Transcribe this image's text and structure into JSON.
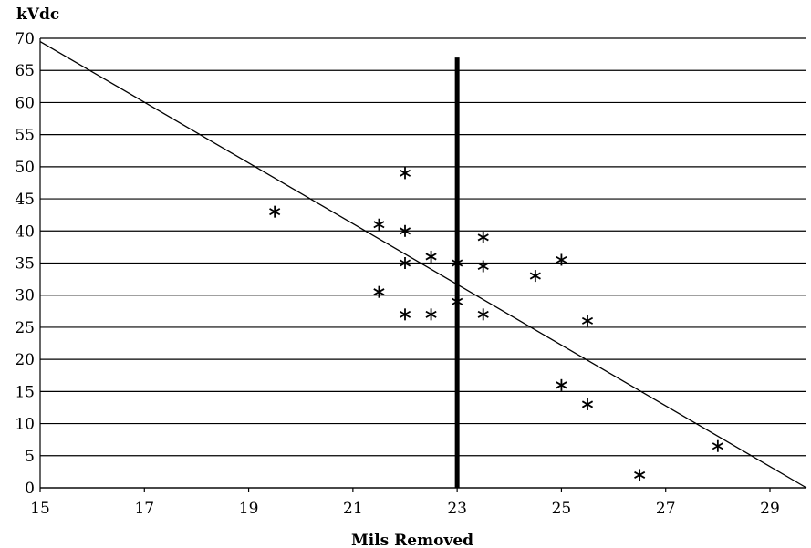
{
  "chart_data": {
    "type": "scatter",
    "title": "",
    "xlabel": "Mils Removed",
    "ylabel": "kVdc",
    "xlim": [
      15,
      29.7
    ],
    "ylim": [
      0,
      70
    ],
    "x_ticks": [
      15,
      17,
      19,
      21,
      23,
      25,
      27,
      29
    ],
    "y_ticks": [
      0,
      5,
      10,
      15,
      20,
      25,
      30,
      35,
      40,
      45,
      50,
      55,
      60,
      65,
      70
    ],
    "grid": "horizontal",
    "marker": "*",
    "points": [
      {
        "x": 19.5,
        "y": 43
      },
      {
        "x": 21.5,
        "y": 41
      },
      {
        "x": 21.5,
        "y": 30.5
      },
      {
        "x": 22.0,
        "y": 49
      },
      {
        "x": 22.0,
        "y": 40
      },
      {
        "x": 22.0,
        "y": 35
      },
      {
        "x": 22.0,
        "y": 27
      },
      {
        "x": 22.5,
        "y": 36
      },
      {
        "x": 22.5,
        "y": 27
      },
      {
        "x": 23.0,
        "y": 35
      },
      {
        "x": 23.0,
        "y": 29
      },
      {
        "x": 23.5,
        "y": 39
      },
      {
        "x": 23.5,
        "y": 34.5
      },
      {
        "x": 23.5,
        "y": 27
      },
      {
        "x": 24.5,
        "y": 33
      },
      {
        "x": 25.0,
        "y": 35.5
      },
      {
        "x": 25.0,
        "y": 16
      },
      {
        "x": 25.5,
        "y": 26
      },
      {
        "x": 25.5,
        "y": 13
      },
      {
        "x": 26.5,
        "y": 2
      },
      {
        "x": 28.0,
        "y": 6.5
      }
    ],
    "trend_line": {
      "x": [
        15,
        29.7
      ],
      "y": [
        69.5,
        0
      ]
    },
    "vertical_marker": {
      "x": 23,
      "y_top": 67,
      "y_bottom": 0
    }
  }
}
